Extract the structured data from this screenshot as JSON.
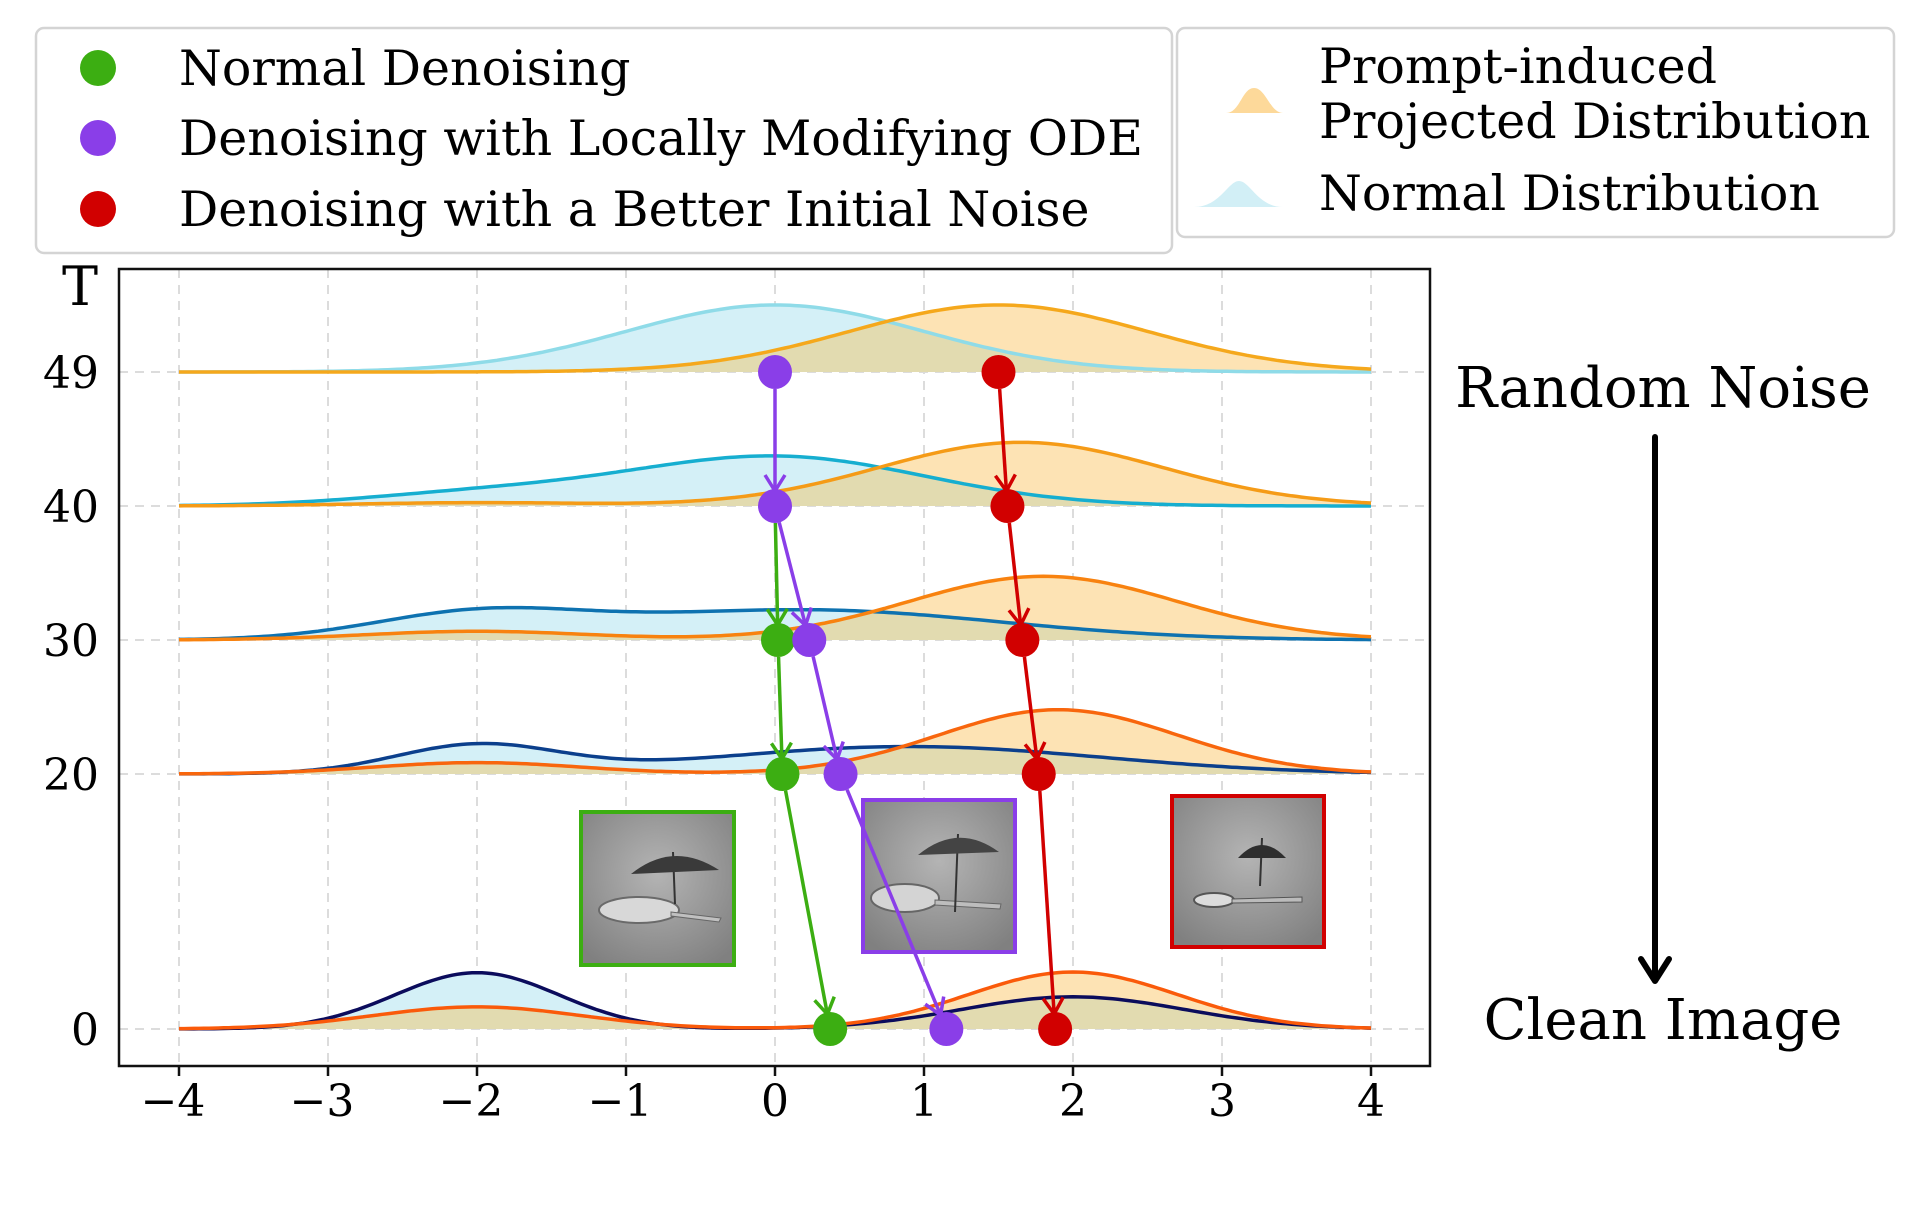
{
  "legend_markers": {
    "items": [
      {
        "label": "Normal Denoising",
        "color": "#3cae12"
      },
      {
        "label": "Denoising with Locally Modifying ODE",
        "color": "#8a3ee8"
      },
      {
        "label": "Denoising with a Better Initial Noise",
        "color": "#d10000"
      }
    ]
  },
  "legend_distributions": {
    "items": [
      {
        "label_lines": [
          "Prompt-induced",
          "Projected Distribution"
        ],
        "color": "#fdd99a"
      },
      {
        "label_lines": [
          "Normal Distribution"
        ],
        "color": "#d2eff6"
      }
    ]
  },
  "side_labels": {
    "top": "Random Noise",
    "bottom": "Clean Image"
  },
  "colors": {
    "projected_fill": "#fde3b4",
    "normal_fill": "#d4f0f7",
    "overlap_fill": "#e2dbb0"
  },
  "chart_data": {
    "type": "ridgeline",
    "title": "",
    "xlabel": "",
    "ylabel": "T",
    "xlim": [
      -4.4,
      4.4
    ],
    "x_ticks": [
      -4,
      -3,
      -2,
      -1,
      0,
      1,
      2,
      3,
      4
    ],
    "x_tick_labels": [
      "−4",
      "−3",
      "−2",
      "−1",
      "0",
      "1",
      "2",
      "3",
      "4"
    ],
    "y_ticks": [
      49,
      40,
      30,
      20,
      0
    ],
    "y_tick_labels": [
      "49",
      "40",
      "30",
      "20",
      "0"
    ],
    "grid": true,
    "distribution_range": [
      -4,
      4
    ],
    "rows": [
      {
        "T": 49,
        "normal": {
          "color": "#8fdbe8",
          "components": [
            [
              0.0,
              1.0,
              1.0
            ]
          ]
        },
        "projected": {
          "color": "#f5a81c",
          "components": [
            [
              1.5,
              1.0,
              1.0
            ]
          ]
        }
      },
      {
        "T": 40,
        "normal": {
          "color": "#16aed0",
          "components": [
            [
              -2.0,
              0.8,
              0.17
            ],
            [
              0.0,
              1.0,
              0.74
            ]
          ]
        },
        "projected": {
          "color": "#f59b17",
          "components": [
            [
              -2.0,
              0.8,
              0.05
            ],
            [
              1.65,
              0.95,
              0.95
            ]
          ]
        }
      },
      {
        "T": 30,
        "normal": {
          "color": "#0e72b0",
          "components": [
            [
              -2.0,
              0.7,
              0.36
            ],
            [
              0.2,
              1.3,
              0.45
            ]
          ]
        },
        "projected": {
          "color": "#f8820f",
          "components": [
            [
              -2.0,
              0.75,
              0.13
            ],
            [
              1.8,
              0.9,
              0.95
            ]
          ]
        }
      },
      {
        "T": 20,
        "normal": {
          "color": "#0b3f8c",
          "components": [
            [
              -2.0,
              0.55,
              0.42
            ],
            [
              0.9,
              1.3,
              0.41
            ]
          ]
        },
        "projected": {
          "color": "#f8660d",
          "components": [
            [
              -2.0,
              0.7,
              0.17
            ],
            [
              1.9,
              0.8,
              0.96
            ]
          ]
        }
      },
      {
        "T": 0,
        "normal": {
          "color": "#0b0c5c",
          "components": [
            [
              -2.0,
              0.55,
              0.84
            ],
            [
              2.0,
              0.75,
              0.48
            ]
          ]
        },
        "projected": {
          "color": "#fa5a0a",
          "components": [
            [
              -2.0,
              0.7,
              0.33
            ],
            [
              2.0,
              0.7,
              0.85
            ]
          ]
        }
      }
    ],
    "trajectories": [
      {
        "name": "Normal Denoising",
        "color": "#3cae12",
        "from": {
          "T": 40,
          "x": 0.0
        },
        "points": [
          {
            "T": 30,
            "x": 0.02
          },
          {
            "T": 20,
            "x": 0.05
          },
          {
            "T": 0,
            "x": 0.37
          }
        ]
      },
      {
        "name": "Denoising with Locally Modifying ODE",
        "color": "#8a3ee8",
        "points": [
          {
            "T": 49,
            "x": 0.0
          },
          {
            "T": 40,
            "x": 0.0
          },
          {
            "T": 30,
            "x": 0.23
          },
          {
            "T": 20,
            "x": 0.44
          },
          {
            "T": 0,
            "x": 1.15
          }
        ]
      },
      {
        "name": "Denoising with a Better Initial Noise",
        "color": "#d10000",
        "points": [
          {
            "T": 49,
            "x": 1.5
          },
          {
            "T": 40,
            "x": 1.56
          },
          {
            "T": 30,
            "x": 1.66
          },
          {
            "T": 20,
            "x": 1.77
          },
          {
            "T": 0,
            "x": 1.88
          }
        ]
      }
    ],
    "result_images": [
      {
        "trajectory": "Normal Denoising",
        "border_color": "#3cae12",
        "description": "umbrella above spoon (grayscale)"
      },
      {
        "trajectory": "Denoising with Locally Modifying ODE",
        "border_color": "#8a3ee8",
        "description": "umbrella standing on spoon (grayscale)"
      },
      {
        "trajectory": "Denoising with a Better Initial Noise",
        "border_color": "#d10000",
        "description": "small umbrella above spoon (grayscale)"
      }
    ]
  }
}
